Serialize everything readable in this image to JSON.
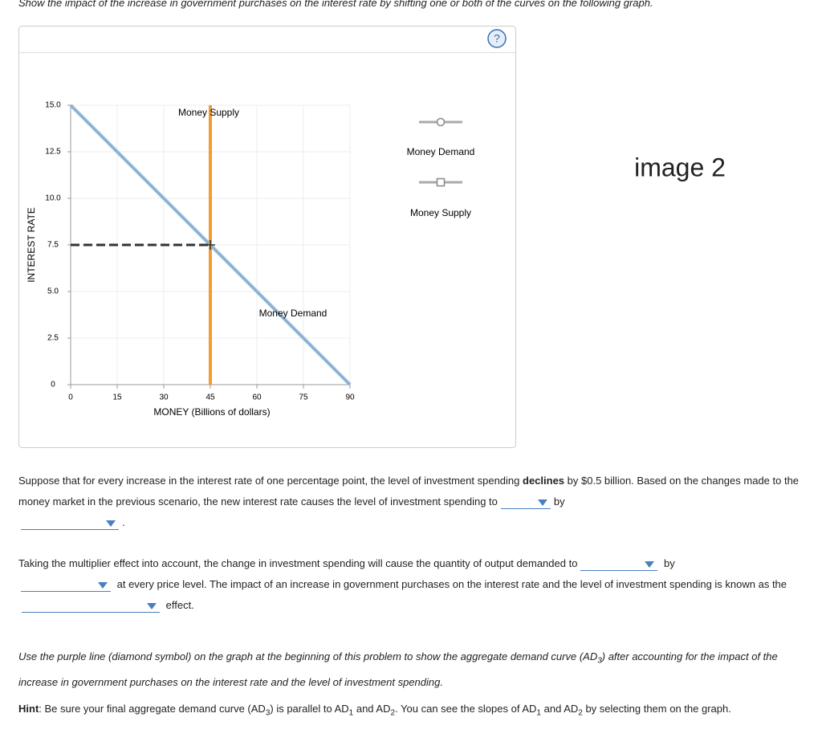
{
  "instruction": "Show the impact of the increase in government purchases on the interest rate by shifting one or both of the curves on the following graph.",
  "help_icon": "?",
  "chart_data": {
    "type": "line",
    "x_label": "MONEY (Billions of dollars)",
    "y_label": "INTEREST RATE",
    "xlim": [
      0,
      90
    ],
    "xticks": [
      0,
      15,
      30,
      45,
      60,
      75,
      90
    ],
    "ylim": [
      0,
      15
    ],
    "yticks": [
      0,
      2.5,
      {
        "value": 5,
        "label": "5.0"
      },
      7.5,
      {
        "value": 10,
        "label": "10.0"
      },
      12.5,
      {
        "value": 15,
        "label": "15.0"
      }
    ],
    "grid": true,
    "series": [
      {
        "name": "Money Demand",
        "color": "#8db3d6",
        "x": [
          0,
          90
        ],
        "values": [
          15,
          0
        ]
      },
      {
        "name": "Money Supply",
        "color": "#f39c2f",
        "x": [
          45,
          45
        ],
        "values": [
          0,
          15
        ]
      }
    ],
    "equilibrium": {
      "x": 45,
      "y": 7.5
    }
  },
  "image_label": "image 2",
  "questions": [
    [
      "Suppose that for every increase in the interest rate of one percentage point, the level of investment spending",
      "declines",
      "by $0.5 billion. Based on the changes made to the money market in the previous scenario, the new interest rate causes the level of investment spending to",
      "by",
      "."
    ],
    [
      "Taking the multiplier effect into account, the change in investment spending will cause the quantity of output demanded to",
      "by",
      "at every price level. The impact of an increase in government purchases on the interest rate and the level of investment spending is known as the",
      "effect."
    ],
    [
      "Use the purple line (diamond symbol) on the graph at the beginning of this problem to show the aggregate demand curve (AD",
      "3",
      ") after accounting for the impact of the increase in government purchases on the interest rate and the level of investment spending."
    ],
    [
      "Hint",
      ": Be sure your final aggregate demand curve (AD",
      "3",
      ") is parallel to AD",
      "1",
      "and AD",
      "2",
      ". You can see the slopes of AD",
      "1",
      "and AD",
      "2",
      "by selecting them on the graph."
    ]
  ]
}
